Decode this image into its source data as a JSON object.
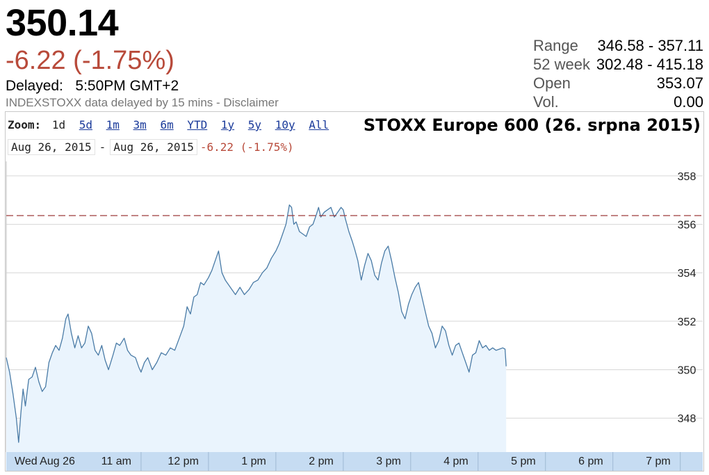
{
  "quote": {
    "price": "350.14",
    "change": "-6.22 (-1.75%)",
    "delayed_label": "Delayed:",
    "delayed_time": "5:50PM GMT+2",
    "disclaimer_prefix": "INDEXSTOXX data delayed by 15 mins - ",
    "disclaimer_link": "Disclaimer"
  },
  "stats": [
    {
      "label": "Range",
      "value": "346.58 - 357.11"
    },
    {
      "label": "52 week",
      "value": "302.48 - 415.18"
    },
    {
      "label": "Open",
      "value": "353.07"
    },
    {
      "label": "Vol.",
      "value": "0.00"
    }
  ],
  "toolbar": {
    "zoom_label": "Zoom:",
    "zoom_options": [
      "1d",
      "5d",
      "1m",
      "3m",
      "6m",
      "YTD",
      "1y",
      "5y",
      "10y",
      "All"
    ],
    "active_zoom": "1d",
    "range_start": "Aug 26, 2015",
    "range_end": "Aug 26, 2015",
    "range_separator": "-",
    "range_change": "-6.22 (-1.75%)"
  },
  "colors": {
    "line": "#4a7ba6",
    "fill": "#eaf4fd",
    "prev_close_line": "#9e3b3b",
    "negative": "#b84a3a",
    "xaxis_band": "#c6dcf2",
    "grid": "#d6d6d6"
  },
  "chart_data": {
    "type": "area",
    "title": "STOXX Europe 600 (26. srpna 2015)",
    "xlabel": "",
    "ylabel": "",
    "ylim": [
      346.6,
      358.6
    ],
    "yticks": [
      348,
      350,
      352,
      354,
      356,
      358
    ],
    "x_range": [
      "09:00",
      "19:20"
    ],
    "xtick_labels": [
      {
        "t": "09:00",
        "label": "Wed Aug 26"
      },
      {
        "t": "11:00",
        "label": "11 am"
      },
      {
        "t": "12:00",
        "label": "12 pm"
      },
      {
        "t": "13:00",
        "label": "1 pm"
      },
      {
        "t": "14:00",
        "label": "2 pm"
      },
      {
        "t": "15:00",
        "label": "3 pm"
      },
      {
        "t": "16:00",
        "label": "4 pm"
      },
      {
        "t": "17:00",
        "label": "5 pm"
      },
      {
        "t": "18:00",
        "label": "6 pm"
      },
      {
        "t": "19:00",
        "label": "7 pm"
      }
    ],
    "previous_close": 356.36,
    "grid": true,
    "series": [
      {
        "points": [
          [
            "09:00",
            350.5
          ],
          [
            "09:03",
            349.9
          ],
          [
            "09:06",
            349.0
          ],
          [
            "09:09",
            348.0
          ],
          [
            "09:11",
            347.0
          ],
          [
            "09:13",
            348.2
          ],
          [
            "09:15",
            349.2
          ],
          [
            "09:17",
            348.5
          ],
          [
            "09:20",
            349.6
          ],
          [
            "09:23",
            349.7
          ],
          [
            "09:26",
            350.1
          ],
          [
            "09:29",
            349.5
          ],
          [
            "09:32",
            349.1
          ],
          [
            "09:35",
            349.3
          ],
          [
            "09:38",
            350.3
          ],
          [
            "09:41",
            350.7
          ],
          [
            "09:44",
            351.0
          ],
          [
            "09:47",
            350.8
          ],
          [
            "09:50",
            351.3
          ],
          [
            "09:53",
            352.1
          ],
          [
            "09:55",
            352.3
          ],
          [
            "09:58",
            351.5
          ],
          [
            "10:01",
            350.9
          ],
          [
            "10:04",
            351.4
          ],
          [
            "10:07",
            350.9
          ],
          [
            "10:10",
            351.1
          ],
          [
            "10:13",
            351.8
          ],
          [
            "10:16",
            351.5
          ],
          [
            "10:19",
            350.8
          ],
          [
            "10:22",
            350.6
          ],
          [
            "10:25",
            351.0
          ],
          [
            "10:28",
            350.4
          ],
          [
            "10:31",
            350.0
          ],
          [
            "10:35",
            350.6
          ],
          [
            "10:38",
            351.1
          ],
          [
            "10:41",
            351.0
          ],
          [
            "10:45",
            351.3
          ],
          [
            "10:48",
            350.8
          ],
          [
            "10:51",
            350.6
          ],
          [
            "10:55",
            350.5
          ],
          [
            "10:58",
            350.1
          ],
          [
            "11:00",
            349.9
          ],
          [
            "11:03",
            350.3
          ],
          [
            "11:06",
            350.5
          ],
          [
            "11:10",
            350.0
          ],
          [
            "11:14",
            350.3
          ],
          [
            "11:18",
            350.7
          ],
          [
            "11:22",
            350.6
          ],
          [
            "11:26",
            350.9
          ],
          [
            "11:30",
            350.8
          ],
          [
            "11:34",
            351.3
          ],
          [
            "11:38",
            351.8
          ],
          [
            "11:41",
            352.6
          ],
          [
            "11:44",
            352.3
          ],
          [
            "11:47",
            353.0
          ],
          [
            "11:50",
            353.1
          ],
          [
            "11:53",
            353.6
          ],
          [
            "11:56",
            353.5
          ],
          [
            "12:00",
            353.8
          ],
          [
            "12:03",
            354.1
          ],
          [
            "12:06",
            354.5
          ],
          [
            "12:09",
            354.9
          ],
          [
            "12:12",
            354.0
          ],
          [
            "12:15",
            353.7
          ],
          [
            "12:18",
            353.5
          ],
          [
            "12:21",
            353.3
          ],
          [
            "12:24",
            353.1
          ],
          [
            "12:28",
            353.4
          ],
          [
            "12:32",
            353.1
          ],
          [
            "12:36",
            353.3
          ],
          [
            "12:40",
            353.6
          ],
          [
            "12:44",
            353.7
          ],
          [
            "12:48",
            354.0
          ],
          [
            "12:52",
            354.2
          ],
          [
            "12:56",
            354.6
          ],
          [
            "13:00",
            354.9
          ],
          [
            "13:03",
            355.2
          ],
          [
            "13:06",
            355.6
          ],
          [
            "13:09",
            356.0
          ],
          [
            "13:12",
            356.8
          ],
          [
            "13:14",
            356.7
          ],
          [
            "13:16",
            356.0
          ],
          [
            "13:18",
            356.1
          ],
          [
            "13:21",
            355.7
          ],
          [
            "13:24",
            355.6
          ],
          [
            "13:27",
            355.5
          ],
          [
            "13:30",
            355.9
          ],
          [
            "13:33",
            356.0
          ],
          [
            "13:36",
            356.4
          ],
          [
            "13:38",
            356.7
          ],
          [
            "13:40",
            356.3
          ],
          [
            "13:43",
            356.5
          ],
          [
            "13:46",
            356.6
          ],
          [
            "13:49",
            356.7
          ],
          [
            "13:52",
            356.3
          ],
          [
            "13:55",
            356.5
          ],
          [
            "13:58",
            356.7
          ],
          [
            "14:00",
            356.6
          ],
          [
            "14:02",
            356.2
          ],
          [
            "14:05",
            355.7
          ],
          [
            "14:08",
            355.3
          ],
          [
            "14:10",
            355.0
          ],
          [
            "14:13",
            354.5
          ],
          [
            "14:16",
            353.7
          ],
          [
            "14:19",
            354.3
          ],
          [
            "14:22",
            354.8
          ],
          [
            "14:25",
            354.5
          ],
          [
            "14:28",
            353.9
          ],
          [
            "14:31",
            353.7
          ],
          [
            "14:34",
            354.4
          ],
          [
            "14:37",
            354.9
          ],
          [
            "14:40",
            355.1
          ],
          [
            "14:43",
            354.5
          ],
          [
            "14:46",
            353.8
          ],
          [
            "14:49",
            353.2
          ],
          [
            "14:52",
            352.4
          ],
          [
            "14:55",
            352.1
          ],
          [
            "14:58",
            352.7
          ],
          [
            "15:01",
            353.1
          ],
          [
            "15:04",
            353.4
          ],
          [
            "15:07",
            353.6
          ],
          [
            "15:10",
            353.0
          ],
          [
            "15:13",
            352.4
          ],
          [
            "15:16",
            351.8
          ],
          [
            "15:19",
            351.5
          ],
          [
            "15:22",
            350.9
          ],
          [
            "15:25",
            351.2
          ],
          [
            "15:28",
            351.8
          ],
          [
            "15:31",
            351.6
          ],
          [
            "15:34",
            351.0
          ],
          [
            "15:37",
            350.6
          ],
          [
            "15:40",
            351.0
          ],
          [
            "15:43",
            351.1
          ],
          [
            "15:46",
            350.7
          ],
          [
            "15:49",
            350.3
          ],
          [
            "15:52",
            349.9
          ],
          [
            "15:55",
            350.6
          ],
          [
            "15:58",
            350.7
          ],
          [
            "16:01",
            351.2
          ],
          [
            "16:04",
            350.9
          ],
          [
            "16:07",
            351.0
          ],
          [
            "16:10",
            350.8
          ],
          [
            "16:13",
            350.9
          ],
          [
            "16:16",
            350.8
          ],
          [
            "16:19",
            350.85
          ],
          [
            "16:22",
            350.9
          ],
          [
            "16:24",
            350.85
          ],
          [
            "16:25",
            350.14
          ]
        ]
      }
    ]
  }
}
